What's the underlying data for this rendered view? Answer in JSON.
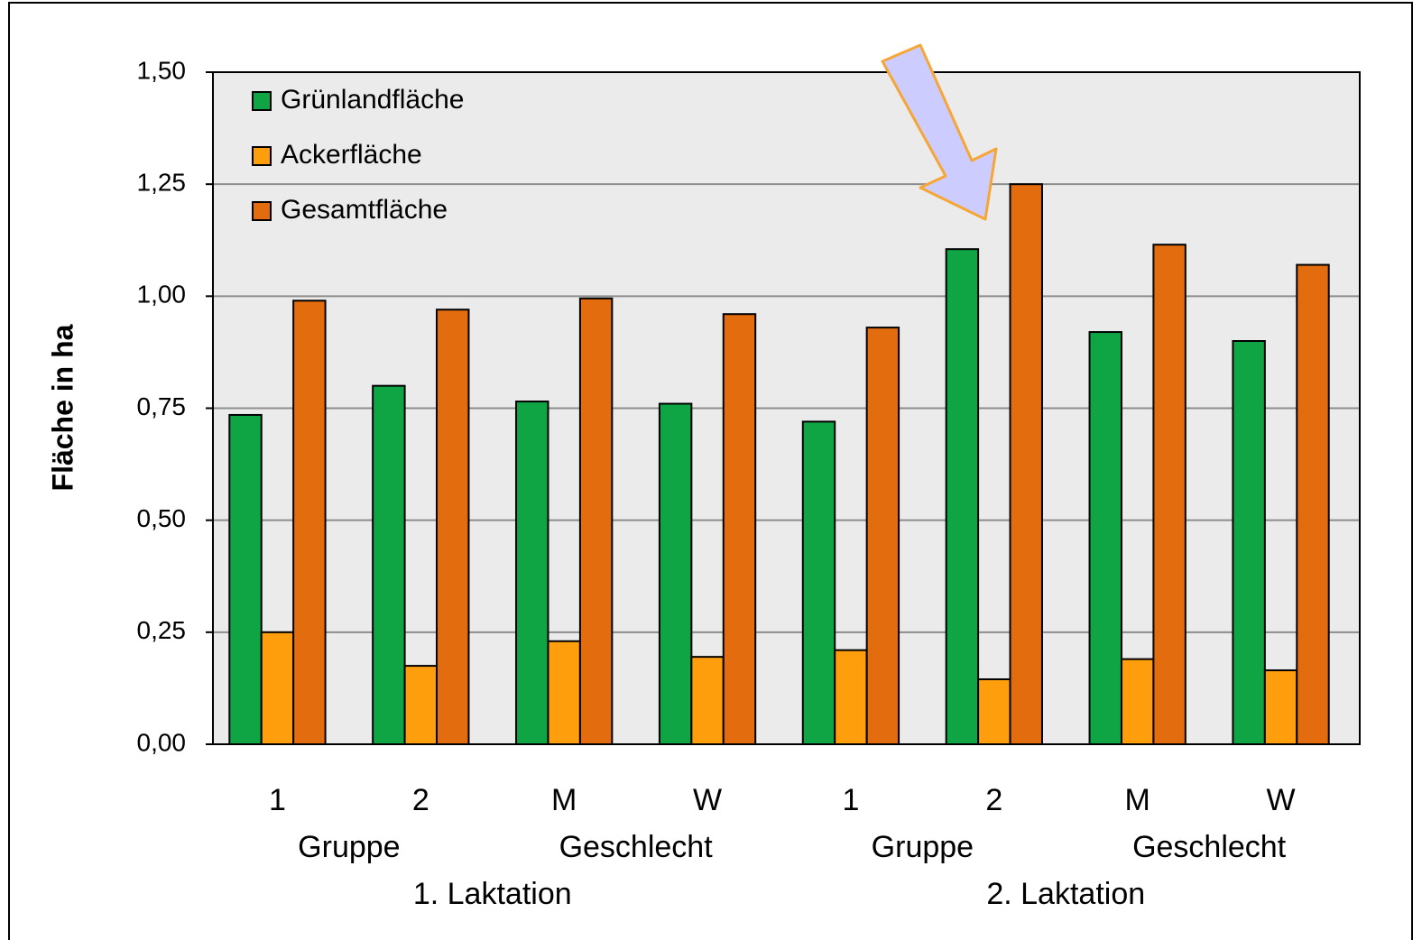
{
  "chart_data": {
    "type": "bar",
    "y_label": "Fläche in ha",
    "categories": [
      "1",
      "2",
      "M",
      "W",
      "1",
      "2",
      "M",
      "W"
    ],
    "category_levels": [
      [
        "Gruppe",
        null,
        "Geschlecht",
        null,
        "Gruppe",
        null,
        "Geschlecht",
        null
      ],
      [
        "1. Laktation",
        null,
        null,
        null,
        "2. Laktation",
        null,
        null,
        null
      ]
    ],
    "series": [
      {
        "name": "Grünlandfläche",
        "color": "#10a544",
        "values": [
          0.735,
          0.8,
          0.765,
          0.76,
          0.72,
          1.105,
          0.92,
          0.9
        ]
      },
      {
        "name": "Ackerfläche",
        "color": "#ff9e0c",
        "values": [
          0.25,
          0.175,
          0.23,
          0.195,
          0.21,
          0.145,
          0.19,
          0.165
        ]
      },
      {
        "name": "Gesamtfläche",
        "color": "#e36c0e",
        "values": [
          0.99,
          0.97,
          0.995,
          0.96,
          0.93,
          1.25,
          1.115,
          1.07
        ]
      }
    ],
    "ylim": [
      0,
      1.5
    ],
    "yticks": [
      {
        "value": 0,
        "label": "0,00"
      },
      {
        "value": 0.25,
        "label": "0,25"
      },
      {
        "value": 0.5,
        "label": "0,50"
      },
      {
        "value": 0.75,
        "label": "0,75"
      },
      {
        "value": 1,
        "label": "1,00"
      },
      {
        "value": 1.25,
        "label": "1,25"
      },
      {
        "value": 1.5,
        "label": "1,50"
      }
    ],
    "grid": true,
    "legend": "top-left"
  }
}
